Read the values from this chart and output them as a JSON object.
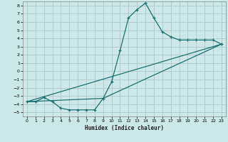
{
  "title": "",
  "xlabel": "Humidex (Indice chaleur)",
  "xlim": [
    -0.5,
    23.5
  ],
  "ylim": [
    -5.5,
    8.5
  ],
  "xticks": [
    0,
    1,
    2,
    3,
    4,
    5,
    6,
    7,
    8,
    9,
    10,
    11,
    12,
    13,
    14,
    15,
    16,
    17,
    18,
    19,
    20,
    21,
    22,
    23
  ],
  "yticks": [
    -5,
    -4,
    -3,
    -2,
    -1,
    0,
    1,
    2,
    3,
    4,
    5,
    6,
    7,
    8
  ],
  "bg_color": "#cde8e8",
  "grid_color": "#b0cccc",
  "line_color": "#1a7070",
  "curve_main_x": [
    0,
    1,
    2,
    3,
    4,
    5,
    6,
    7,
    8,
    9,
    10,
    11,
    12,
    13,
    14,
    15,
    16,
    17,
    18,
    19,
    20,
    21,
    22,
    23
  ],
  "curve_main_y": [
    -3.7,
    -3.7,
    -3.2,
    -3.7,
    -4.5,
    -4.7,
    -4.7,
    -4.7,
    -4.7,
    -3.3,
    -1.3,
    2.5,
    6.5,
    7.5,
    8.3,
    6.5,
    4.8,
    4.2,
    3.8,
    3.8,
    3.8,
    3.8,
    3.8,
    3.3
  ],
  "line1_x": [
    0,
    23
  ],
  "line1_y": [
    -3.7,
    3.3
  ],
  "line2_x": [
    0,
    9,
    23
  ],
  "line2_y": [
    -3.7,
    -3.3,
    3.3
  ]
}
